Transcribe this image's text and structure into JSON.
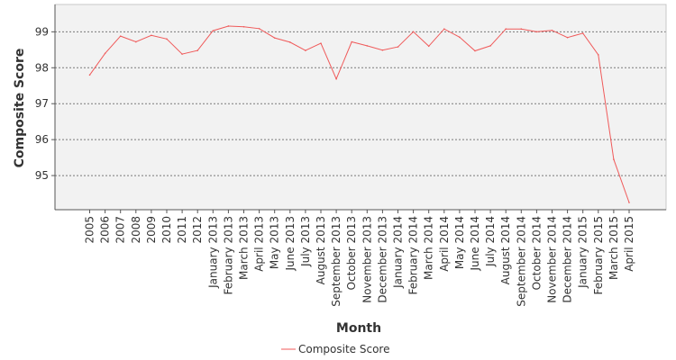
{
  "chart_data": {
    "type": "line",
    "title": "",
    "xlabel": "Month",
    "ylabel": "Composite Score",
    "categories": [
      "2005",
      "2006",
      "2007",
      "2008",
      "2009",
      "2010",
      "2011",
      "2012",
      "January 2013",
      "February 2013",
      "March 2013",
      "April 2013",
      "May 2013",
      "June 2013",
      "July 2013",
      "August 2013",
      "September 2013",
      "October 2013",
      "November 2013",
      "December 2013",
      "January 2014",
      "February 2014",
      "March 2014",
      "April 2014",
      "May 2014",
      "June 2014",
      "July 2014",
      "August 2014",
      "September 2014",
      "October 2014",
      "November 2014",
      "December 2014",
      "January 2015",
      "February 2015",
      "March 2015",
      "April 2015"
    ],
    "series": [
      {
        "name": "Composite Score",
        "color": "#f05a5a",
        "values": [
          97.8,
          98.4,
          98.88,
          98.72,
          98.9,
          98.8,
          98.38,
          98.48,
          99.03,
          99.16,
          99.14,
          99.09,
          98.83,
          98.71,
          98.48,
          98.68,
          97.69,
          98.72,
          98.61,
          98.49,
          98.58,
          99.0,
          98.6,
          99.08,
          98.85,
          98.47,
          98.61,
          99.08,
          99.08,
          99.0,
          99.04,
          98.84,
          98.96,
          98.36,
          95.45,
          94.25
        ]
      }
    ],
    "yticks": [
      95,
      96,
      97,
      98,
      99
    ],
    "ylim": [
      94.05,
      99.76
    ],
    "grid": true,
    "legend": "bottom-center"
  }
}
